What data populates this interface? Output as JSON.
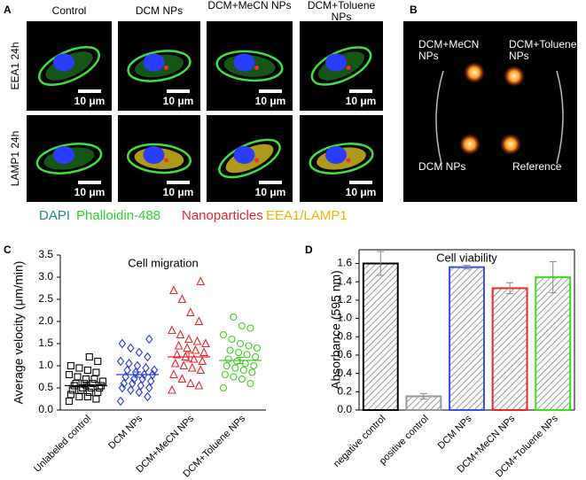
{
  "panel_labels": [
    "A",
    "B",
    "C",
    "D"
  ],
  "panel_a": {
    "columns": [
      "Control",
      "DCM NPs",
      "DCM+MeCN NPs",
      "DCM+Toluene NPs"
    ],
    "rows": [
      "EEA1 24h",
      "LAMP1 24h"
    ],
    "scale_bar": "10 μm",
    "legend": [
      {
        "name": "DAPI",
        "color": "#1d8a8a"
      },
      {
        "name": "Phalloidin-488",
        "color": "#2fd12f"
      },
      {
        "name": "Nanoparticles",
        "color": "#e8262e"
      },
      {
        "name": "EEA1/LAMP1",
        "color": "#f0b400"
      }
    ]
  },
  "panel_b": {
    "labels": [
      "DCM+MeCN NPs",
      "DCM+Toluene NPs",
      "DCM NPs",
      "Reference"
    ]
  },
  "chart_data": [
    {
      "type": "scatter",
      "title": "Cell migration",
      "y_label": "Average velocity (μm/min)",
      "categories": [
        "Unlabeled control",
        "DCM NPs",
        "DCM+MeCN NPs",
        "DCM+Toluene NPs"
      ],
      "groups": [
        {
          "color": "#000000",
          "marker": "square",
          "mean": 0.55,
          "error": 0.05,
          "values": [
            0.2,
            0.25,
            0.3,
            0.3,
            0.35,
            0.4,
            0.4,
            0.45,
            0.45,
            0.5,
            0.5,
            0.5,
            0.55,
            0.55,
            0.6,
            0.6,
            0.6,
            0.65,
            0.7,
            0.7,
            0.75,
            0.8,
            0.85,
            0.9,
            0.95,
            1.0,
            1.1,
            1.2
          ]
        },
        {
          "color": "#2a3fd6",
          "marker": "diamond",
          "mean": 0.8,
          "error": 0.06,
          "values": [
            0.2,
            0.3,
            0.4,
            0.45,
            0.5,
            0.5,
            0.55,
            0.6,
            0.6,
            0.65,
            0.7,
            0.7,
            0.75,
            0.8,
            0.8,
            0.85,
            0.9,
            0.9,
            0.95,
            1.0,
            1.05,
            1.1,
            1.2,
            1.3,
            1.4,
            1.5,
            1.6
          ]
        },
        {
          "color": "#e8262e",
          "marker": "triangle",
          "mean": 1.2,
          "error": 0.1,
          "values": [
            0.45,
            0.55,
            0.6,
            0.7,
            0.8,
            0.9,
            0.95,
            1.0,
            1.05,
            1.1,
            1.15,
            1.2,
            1.25,
            1.3,
            1.35,
            1.4,
            1.45,
            1.5,
            1.55,
            1.6,
            1.7,
            1.8,
            2.0,
            2.2,
            2.5,
            2.7,
            2.9
          ]
        },
        {
          "color": "#3ccc1c",
          "marker": "circle",
          "mean": 1.12,
          "error": 0.07,
          "values": [
            0.5,
            0.6,
            0.7,
            0.75,
            0.8,
            0.85,
            0.9,
            0.95,
            1.0,
            1.0,
            1.05,
            1.1,
            1.15,
            1.2,
            1.25,
            1.3,
            1.35,
            1.4,
            1.45,
            1.5,
            1.6,
            1.7,
            1.85,
            1.9,
            2.1
          ]
        }
      ],
      "ylim": [
        0,
        3.5
      ],
      "yticks": [
        {
          "value": 0,
          "label": "0.0"
        },
        0.5,
        {
          "value": 1,
          "label": "1.0"
        },
        1.5,
        {
          "value": 2,
          "label": "2.0"
        },
        2.5,
        {
          "value": 3,
          "label": "3.0"
        },
        3.5
      ]
    },
    {
      "type": "bar",
      "title": "Cell viability",
      "y_label": "Absorbance (595 nm)",
      "categories": [
        "negative control",
        "positive control",
        "DCM NPs",
        "DCM+MeCN NPs",
        "DCM+Toluene NPs"
      ],
      "values": [
        1.6,
        0.15,
        1.56,
        1.33,
        1.45
      ],
      "errors": [
        0.13,
        0.03,
        0.02,
        0.06,
        0.17
      ],
      "colors": [
        "#000000",
        "#999999",
        "#3a4fe0",
        "#e8262e",
        "#3ce01c"
      ],
      "ylim": [
        0,
        1.75
      ],
      "yticks": [
        {
          "value": 0,
          "label": "0.0"
        },
        0.2,
        0.4,
        0.6,
        0.8,
        {
          "value": 1,
          "label": "1.0"
        },
        1.2,
        1.4,
        1.6
      ]
    }
  ]
}
